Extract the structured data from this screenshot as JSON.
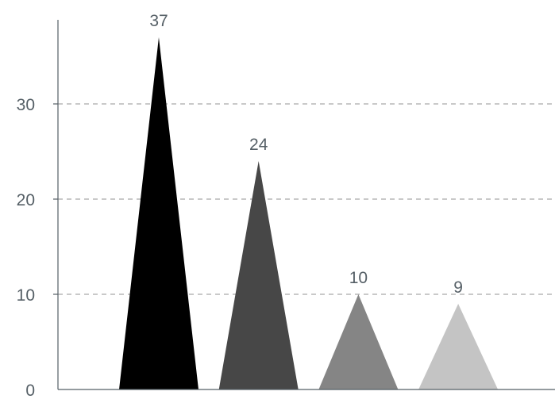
{
  "chart_data": {
    "type": "bar",
    "bar_shape": "triangle",
    "categories": [
      "",
      "",
      "",
      ""
    ],
    "values": [
      37,
      24,
      10,
      9
    ],
    "data_labels": [
      "37",
      "24",
      "10",
      "9"
    ],
    "colors": [
      "#000000",
      "#474747",
      "#858585",
      "#c4c4c4"
    ],
    "title": "",
    "xlabel": "",
    "ylabel": "",
    "ylim": [
      0,
      37
    ],
    "yticks": [
      0,
      10,
      20,
      30
    ],
    "ytick_labels": [
      "0",
      "10",
      "20",
      "30"
    ],
    "grid": "horizontal-dashed",
    "legend": "none"
  }
}
